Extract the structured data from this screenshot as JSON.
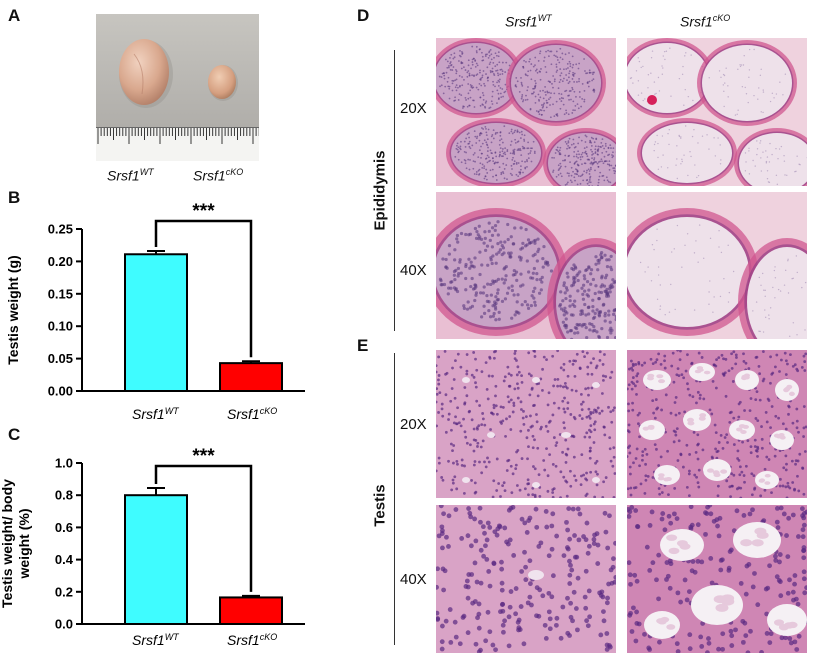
{
  "panels": {
    "A": "A",
    "B": "B",
    "C": "C",
    "D": "D",
    "E": "E"
  },
  "genotypes": {
    "base": "Srsf1",
    "wt_sup": "WT",
    "cko_sup": "cKO"
  },
  "magnifications": {
    "low": "20X",
    "high": "40X"
  },
  "tissues": {
    "epididymis": "Epididymis",
    "testis": "Testis"
  },
  "colors": {
    "wt": "#3ffcff",
    "cko": "#ff0000",
    "he_pink": "#e9a7c9",
    "he_purple": "#7a3f8e"
  },
  "chart_data": [
    {
      "type": "bar",
      "panel": "B",
      "categories": [
        "Srsf1 WT",
        "Srsf1 cKO"
      ],
      "values": [
        0.211,
        0.043
      ],
      "errors": [
        0.005,
        0.003
      ],
      "ylabel": "Testis weight (g)",
      "ylim": [
        0,
        0.25
      ],
      "yticks": [
        "0.00",
        "0.05",
        "0.10",
        "0.15",
        "0.20",
        "0.25"
      ],
      "significance": "***"
    },
    {
      "type": "bar",
      "panel": "C",
      "categories": [
        "Srsf1 WT",
        "Srsf1 cKO"
      ],
      "values": [
        0.8,
        0.165
      ],
      "errors": [
        0.045,
        0.01
      ],
      "ylabel": "Testis weight/ body weight (%)",
      "ylim": [
        0,
        1.0
      ],
      "yticks": [
        "0.0",
        "0.2",
        "0.4",
        "0.6",
        "0.8",
        "1.0"
      ],
      "significance": "***"
    }
  ]
}
